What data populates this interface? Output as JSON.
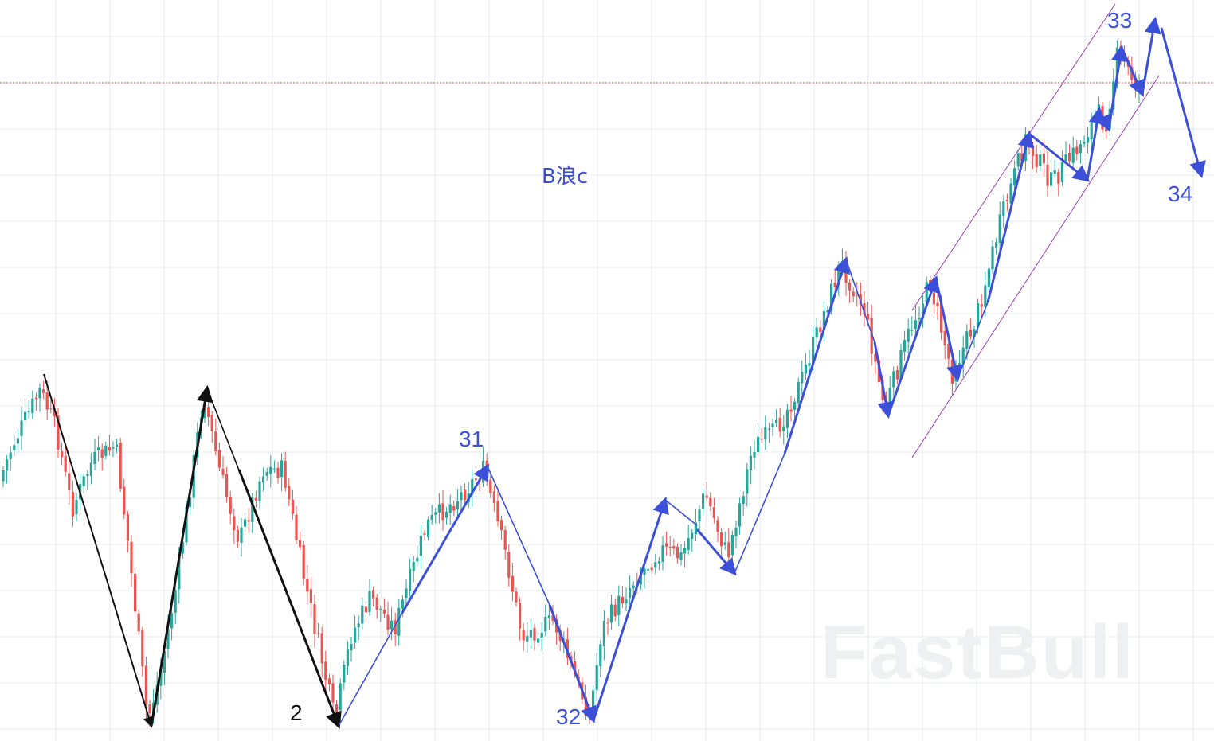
{
  "chart_data": {
    "type": "candlestick",
    "title": "B浪c",
    "watermark": "FastBull",
    "grid": true,
    "reference_line": {
      "style": "dotted",
      "color": "#d9534f"
    },
    "wave_labels": [
      {
        "text": "2",
        "color": "#111111"
      },
      {
        "text": "31",
        "color": "#3b4fd8"
      },
      {
        "text": "32",
        "color": "#3b4fd8"
      },
      {
        "text": "33",
        "color": "#3b4fd8"
      },
      {
        "text": "34",
        "color": "#3b4fd8"
      }
    ],
    "colors": {
      "up": "#26a69a",
      "down": "#ef5350",
      "arrow_black": "#111111",
      "arrow_blue": "#3b4fd8",
      "channel": "#9b3fb5",
      "grid": "#e6eaef"
    }
  }
}
